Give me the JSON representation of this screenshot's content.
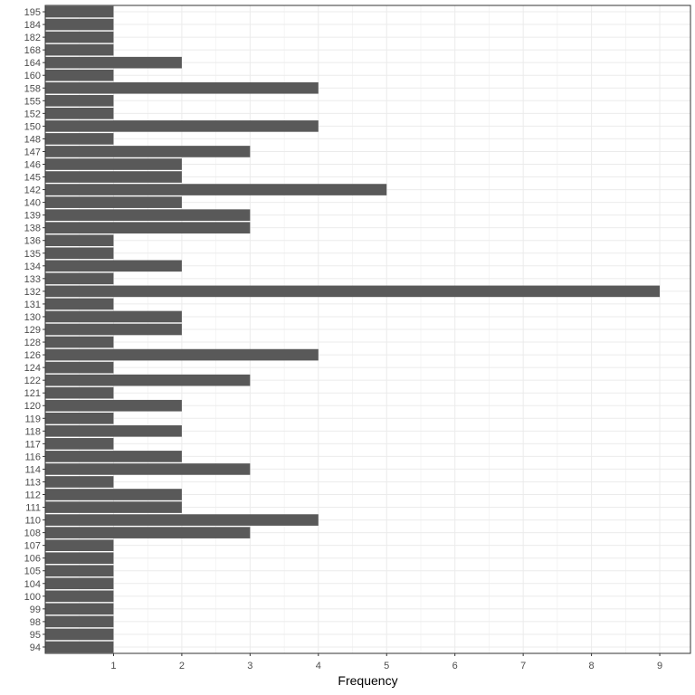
{
  "chart_data": {
    "type": "bar",
    "orientation": "horizontal",
    "categories": [
      "94",
      "95",
      "98",
      "99",
      "100",
      "104",
      "105",
      "106",
      "107",
      "108",
      "110",
      "111",
      "112",
      "113",
      "114",
      "116",
      "117",
      "118",
      "119",
      "120",
      "121",
      "122",
      "124",
      "126",
      "128",
      "129",
      "130",
      "131",
      "132",
      "133",
      "134",
      "135",
      "136",
      "138",
      "139",
      "140",
      "142",
      "145",
      "146",
      "147",
      "148",
      "150",
      "152",
      "155",
      "158",
      "160",
      "164",
      "168",
      "182",
      "184",
      "195"
    ],
    "values": [
      1,
      1,
      1,
      1,
      1,
      1,
      1,
      1,
      1,
      3,
      4,
      2,
      2,
      1,
      3,
      2,
      1,
      2,
      1,
      2,
      1,
      3,
      1,
      4,
      1,
      2,
      2,
      1,
      9,
      1,
      2,
      1,
      1,
      3,
      3,
      2,
      5,
      2,
      2,
      3,
      1,
      4,
      1,
      1,
      4,
      1,
      2,
      1,
      1,
      1,
      1
    ],
    "title": "",
    "xlabel": "Frequency",
    "ylabel": "",
    "xlim": [
      0,
      9.45
    ],
    "xticks": [
      1,
      2,
      3,
      4,
      5,
      6,
      7,
      8,
      9
    ],
    "grid": true,
    "bar_color": "#595959",
    "grid_color": "#ebebeb",
    "panel_border_color": "#333333"
  }
}
